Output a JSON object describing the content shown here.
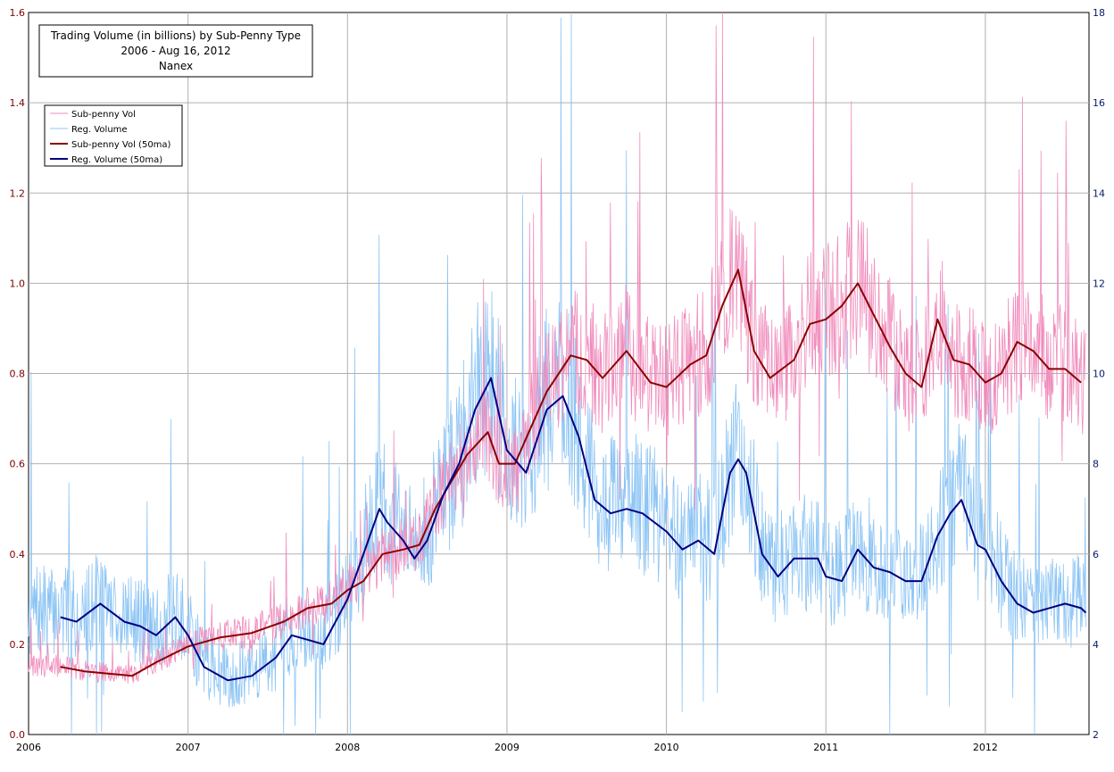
{
  "chart_data": {
    "type": "line",
    "title_lines": [
      "Trading Volume (in billions) by Sub-Penny Type",
      "2006 - Aug 16, 2012",
      "Nanex"
    ],
    "xlabel": "",
    "ylabel": "",
    "x_ticks": [
      "2006",
      "2007",
      "2008",
      "2009",
      "2010",
      "2011",
      "2012"
    ],
    "x_range": [
      2006.0,
      2012.65
    ],
    "y_left": {
      "range": [
        0,
        1.6
      ],
      "ticks": [
        "0.0",
        "0.2",
        "0.4",
        "0.6",
        "0.8",
        "1.0",
        "1.2",
        "1.4",
        "1.6"
      ]
    },
    "y_right": {
      "range": [
        2,
        18
      ],
      "ticks": [
        "2",
        "4",
        "6",
        "8",
        "10",
        "12",
        "14",
        "16",
        "18"
      ]
    },
    "grid": true,
    "legend_position": "top-left",
    "series": [
      {
        "name": "Sub-penny Vol (50ma)",
        "axis": "left",
        "color": "#8b0000",
        "x": [
          2006.2,
          2006.35,
          2006.5,
          2006.65,
          2006.8,
          2007.0,
          2007.2,
          2007.4,
          2007.6,
          2007.75,
          2007.9,
          2008.0,
          2008.1,
          2008.22,
          2008.35,
          2008.45,
          2008.55,
          2008.65,
          2008.75,
          2008.88,
          2008.95,
          2009.05,
          2009.15,
          2009.25,
          2009.4,
          2009.5,
          2009.6,
          2009.75,
          2009.9,
          2010.0,
          2010.15,
          2010.25,
          2010.35,
          2010.45,
          2010.55,
          2010.65,
          2010.8,
          2010.9,
          2011.0,
          2011.1,
          2011.2,
          2011.3,
          2011.4,
          2011.5,
          2011.6,
          2011.7,
          2011.8,
          2011.9,
          2012.0,
          2012.1,
          2012.2,
          2012.3,
          2012.4,
          2012.5,
          2012.6
        ],
        "y": [
          0.15,
          0.14,
          0.135,
          0.13,
          0.16,
          0.195,
          0.215,
          0.225,
          0.25,
          0.28,
          0.29,
          0.32,
          0.34,
          0.4,
          0.41,
          0.42,
          0.5,
          0.56,
          0.62,
          0.67,
          0.6,
          0.6,
          0.68,
          0.76,
          0.84,
          0.83,
          0.79,
          0.85,
          0.78,
          0.77,
          0.82,
          0.84,
          0.95,
          1.03,
          0.85,
          0.79,
          0.83,
          0.91,
          0.92,
          0.95,
          1.0,
          0.93,
          0.86,
          0.8,
          0.77,
          0.92,
          0.83,
          0.82,
          0.78,
          0.8,
          0.87,
          0.85,
          0.81,
          0.81,
          0.78
        ]
      },
      {
        "name": "Reg. Volume (50ma)",
        "axis": "right",
        "color": "#000080",
        "x": [
          2006.2,
          2006.3,
          2006.45,
          2006.6,
          2006.7,
          2006.8,
          2006.92,
          2007.0,
          2007.1,
          2007.25,
          2007.4,
          2007.55,
          2007.65,
          2007.75,
          2007.85,
          2008.0,
          2008.1,
          2008.2,
          2008.25,
          2008.35,
          2008.42,
          2008.5,
          2008.6,
          2008.7,
          2008.8,
          2008.9,
          2009.0,
          2009.12,
          2009.25,
          2009.35,
          2009.45,
          2009.55,
          2009.65,
          2009.75,
          2009.85,
          2010.0,
          2010.1,
          2010.2,
          2010.3,
          2010.4,
          2010.45,
          2010.5,
          2010.6,
          2010.7,
          2010.8,
          2010.95,
          2011.0,
          2011.1,
          2011.2,
          2011.3,
          2011.4,
          2011.5,
          2011.6,
          2011.7,
          2011.78,
          2011.85,
          2011.95,
          2012.0,
          2012.1,
          2012.2,
          2012.3,
          2012.4,
          2012.5,
          2012.6,
          2012.63
        ],
        "y": [
          4.6,
          4.5,
          4.9,
          4.5,
          4.4,
          4.2,
          4.6,
          4.2,
          3.5,
          3.2,
          3.3,
          3.7,
          4.2,
          4.1,
          4.0,
          5.0,
          6.0,
          7.0,
          6.7,
          6.3,
          5.9,
          6.3,
          7.3,
          8.0,
          9.2,
          9.9,
          8.3,
          7.8,
          9.2,
          9.5,
          8.6,
          7.2,
          6.9,
          7.0,
          6.9,
          6.5,
          6.1,
          6.3,
          6.0,
          7.8,
          8.1,
          7.8,
          6.0,
          5.5,
          5.9,
          5.9,
          5.5,
          5.4,
          6.1,
          5.7,
          5.6,
          5.4,
          5.4,
          6.4,
          6.9,
          7.2,
          6.2,
          6.1,
          5.4,
          4.9,
          4.7,
          4.8,
          4.9,
          4.8,
          4.7
        ]
      }
    ],
    "raw_series": [
      {
        "name": "Sub-penny Vol",
        "axis": "left",
        "color": "#f08cbc"
      },
      {
        "name": "Reg. Volume",
        "axis": "right",
        "color": "#8cc4f4"
      }
    ]
  }
}
